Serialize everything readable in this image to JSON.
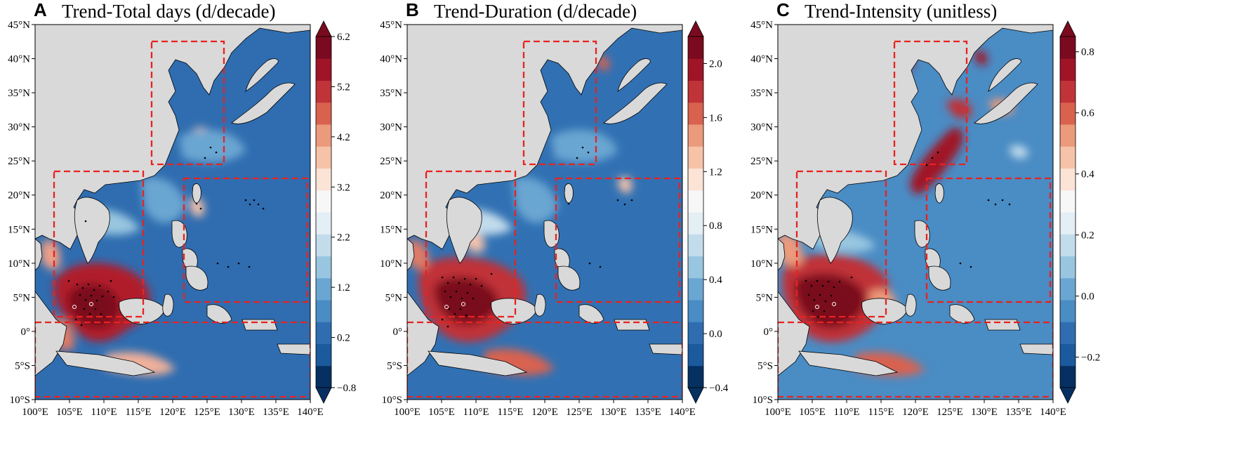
{
  "panels": [
    {
      "letter": "A",
      "title": "Trend-Total days (d/decade)",
      "colorbar": {
        "min": -0.8,
        "max": 6.2,
        "labels": [
          "6.2",
          "5.2",
          "4.2",
          "3.2",
          "2.2",
          "1.2",
          "0.2",
          "−0.8"
        ],
        "tick_values": [
          6.2,
          5.2,
          4.2,
          3.2,
          2.2,
          1.2,
          0.2,
          -0.8
        ]
      }
    },
    {
      "letter": "B",
      "title": "Trend-Duration (d/decade)",
      "colorbar": {
        "min": -0.4,
        "max": 2.2,
        "labels": [
          "2.0",
          "1.6",
          "1.2",
          "0.8",
          "0.4",
          "0.0",
          "−0.4"
        ],
        "tick_values": [
          2.0,
          1.6,
          1.2,
          0.8,
          0.4,
          0.0,
          -0.4
        ]
      }
    },
    {
      "letter": "C",
      "title": "Trend-Intensity (unitless)",
      "colorbar": {
        "min": -0.3,
        "max": 0.85,
        "labels": [
          "0.8",
          "0.6",
          "0.4",
          "0.2",
          "0.0",
          "−0.2"
        ],
        "tick_values": [
          0.8,
          0.6,
          0.4,
          0.2,
          0.0,
          -0.2
        ]
      }
    }
  ],
  "axes": {
    "lon_labels": [
      "100°E",
      "105°E",
      "110°E",
      "115°E",
      "120°E",
      "125°E",
      "130°E",
      "135°E",
      "140°E"
    ],
    "lat_labels": [
      "45°N",
      "40°N",
      "35°N",
      "30°N",
      "25°N",
      "20°N",
      "15°N",
      "10°N",
      "5°N",
      "0°",
      "5°S",
      "10°S"
    ],
    "lon_range": [
      100,
      140
    ],
    "lat_range": [
      -10,
      45
    ]
  },
  "regions": [
    {
      "lon": [
        117,
        128
      ],
      "lat": [
        24,
        42
      ]
    },
    {
      "lon": [
        103,
        116
      ],
      "lat": [
        2,
        23
      ]
    },
    {
      "lon": [
        122,
        140
      ],
      "lat": [
        4,
        22
      ]
    },
    {
      "lon": [
        100,
        140
      ],
      "lat": [
        -10,
        1
      ]
    }
  ],
  "colors": {
    "land": "#d9d9d9",
    "ocean_base_A": "#2f6db0",
    "ocean_base_B": "#3171b3",
    "ocean_base_C": "#4a8cc4",
    "region_box": "#e8221f",
    "colorbar_A": [
      "#053061",
      "#1b5a9c",
      "#2f6db0",
      "#4a8cc4",
      "#6aa6d2",
      "#98c6e0",
      "#c2dcec",
      "#e4eef5",
      "#f7f7f7",
      "#fbe3d6",
      "#f7c3a8",
      "#ec9a7c",
      "#d9624f",
      "#c03338",
      "#a01428",
      "#7a0a1f"
    ],
    "colorbar_B": [
      "#053061",
      "#1b5a9c",
      "#2f6db0",
      "#4a8cc4",
      "#6aa6d2",
      "#98c6e0",
      "#c2dcec",
      "#e4eef5",
      "#f7f7f7",
      "#fbe3d6",
      "#f7c3a8",
      "#ec9a7c",
      "#d9624f",
      "#c03338",
      "#a01428",
      "#7a0a1f"
    ],
    "colorbar_C": [
      "#053061",
      "#1b5a9c",
      "#2f6db0",
      "#4a8cc4",
      "#6aa6d2",
      "#98c6e0",
      "#c2dcec",
      "#e4eef5",
      "#f7f7f7",
      "#fbe3d6",
      "#f7c3a8",
      "#ec9a7c",
      "#d9624f",
      "#c03338",
      "#a01428",
      "#7a0a1f"
    ]
  }
}
